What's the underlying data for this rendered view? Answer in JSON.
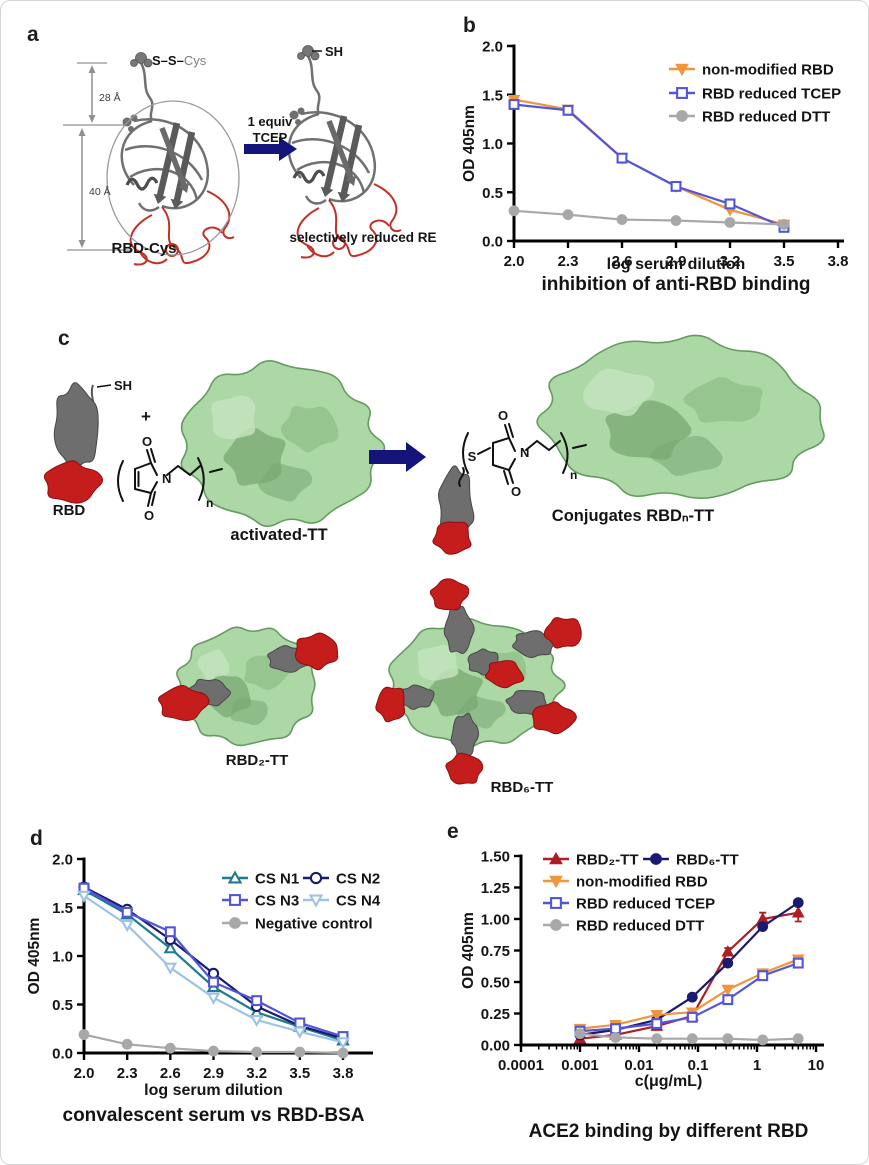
{
  "panels": {
    "a": {
      "label": "a",
      "ss_bond": "S–S–",
      "cys": "Cys",
      "sh": "SH",
      "dim_top": "28 Å",
      "dim_bottom": "40 Å",
      "equiv1": "1 equiv",
      "equiv2": "TCEP",
      "caption_left": "RBD-Cys",
      "caption_right": "selectively reduced RE"
    },
    "b": {
      "label": "b"
    },
    "c": {
      "label": "c",
      "sh": "SH",
      "plus": "+",
      "rbd_caption": "RBD",
      "o_atom": "O",
      "n_atom": "N",
      "s_atom": "S",
      "sub_n": "n",
      "caption_activated": "activated-TT",
      "caption_conjugates": "Conjugates RBDₙ-TT",
      "caption_rbd2": "RBD₂-TT",
      "caption_rbd6": "RBD₆-TT"
    },
    "d": {
      "label": "d"
    },
    "e": {
      "label": "e"
    }
  },
  "colors": {
    "orange": "#F0953C",
    "blue_violet": "#5355D8",
    "gray": "#A8A8A8",
    "teal": "#1E7A8C",
    "navy": "#1A1A70",
    "light_blue": "#9DC2E6",
    "dark_red": "#AC1F24",
    "arrow_navy": "#14147A",
    "tt_green": "#ABD8A4",
    "rbd_gray": "#6E6E6E",
    "rbd_red": "#C41D1B"
  },
  "chart_data": [
    {
      "id": "b",
      "type": "line",
      "title": "inhibition of anti-RBD binding",
      "xlabel": "log serum dilution",
      "ylabel": "OD 405nm",
      "xscale": "linear",
      "xlim": [
        2.0,
        3.8
      ],
      "ylim": [
        0.0,
        2.0
      ],
      "xticks": {
        "values": [
          2.0,
          2.3,
          2.6,
          2.9,
          3.2,
          3.5,
          3.8
        ],
        "labels": [
          "2.0",
          "2.3",
          "2.6",
          "2.9",
          "3.2",
          "3.5",
          "3.8"
        ]
      },
      "yticks": {
        "values": [
          0.0,
          0.5,
          1.0,
          1.5,
          2.0
        ],
        "labels": [
          "0.0",
          "0.5",
          "1.0",
          "1.5",
          "2.0"
        ]
      },
      "x": [
        2.0,
        2.3,
        2.6,
        2.9,
        3.2,
        3.5
      ],
      "legend_position": "top-right",
      "series": [
        {
          "name": "non-modified RBD",
          "color": "#F0953C",
          "marker": "triangle-down",
          "filled": true,
          "values": [
            1.45,
            1.35,
            0.85,
            0.56,
            0.32,
            0.17
          ]
        },
        {
          "name": "RBD reduced TCEP",
          "color": "#5355D8",
          "marker": "square",
          "filled": false,
          "values": [
            1.4,
            1.34,
            0.85,
            0.56,
            0.38,
            0.14
          ]
        },
        {
          "name": "RBD reduced DTT",
          "color": "#A8A8A8",
          "marker": "circle",
          "filled": true,
          "values": [
            0.31,
            0.27,
            0.22,
            0.21,
            0.19,
            0.17
          ]
        }
      ]
    },
    {
      "id": "d",
      "type": "line",
      "title": "convalescent serum vs RBD-BSA",
      "xlabel": "log serum dilution",
      "ylabel": "OD 405nm",
      "xscale": "linear",
      "xlim": [
        2.0,
        3.8
      ],
      "ylim": [
        0.0,
        2.0
      ],
      "xticks": {
        "values": [
          2.0,
          2.3,
          2.6,
          2.9,
          3.2,
          3.5,
          3.8
        ],
        "labels": [
          "2.0",
          "2.3",
          "2.6",
          "2.9",
          "3.2",
          "3.5",
          "3.8"
        ]
      },
      "yticks": {
        "values": [
          0.0,
          0.5,
          1.0,
          1.5,
          2.0
        ],
        "labels": [
          "0.0",
          "0.5",
          "1.0",
          "1.5",
          "2.0"
        ]
      },
      "x": [
        2.0,
        2.3,
        2.6,
        2.9,
        3.2,
        3.5,
        3.8
      ],
      "legend_position": "top-right",
      "series": [
        {
          "name": "CS N1",
          "color": "#1E7A8C",
          "marker": "triangle-up",
          "filled": false,
          "values": [
            1.68,
            1.43,
            1.08,
            0.68,
            0.42,
            0.27,
            0.13
          ]
        },
        {
          "name": "CS N2",
          "color": "#1A1A70",
          "marker": "circle",
          "filled": false,
          "values": [
            1.71,
            1.48,
            1.17,
            0.82,
            0.48,
            0.28,
            0.15
          ]
        },
        {
          "name": "CS N3",
          "color": "#5355D8",
          "marker": "square",
          "filled": false,
          "values": [
            1.7,
            1.45,
            1.25,
            0.73,
            0.54,
            0.31,
            0.17
          ]
        },
        {
          "name": "CS N4",
          "color": "#9DC2E6",
          "marker": "triangle-down",
          "filled": false,
          "values": [
            1.62,
            1.32,
            0.88,
            0.57,
            0.34,
            0.22,
            0.11
          ]
        },
        {
          "name": "Negative control",
          "color": "#A8A8A8",
          "marker": "circle",
          "filled": true,
          "values": [
            0.19,
            0.09,
            0.05,
            0.02,
            0.01,
            0.01,
            0.0
          ]
        }
      ]
    },
    {
      "id": "e",
      "type": "line",
      "title": "ACE2 binding by different RBD",
      "xlabel": "c(μg/mL)",
      "ylabel": "OD 405nm",
      "xscale": "log",
      "xlim": [
        0.0001,
        10
      ],
      "ylim": [
        0.0,
        1.5
      ],
      "xticks": {
        "values": [
          0.0001,
          0.001,
          0.01,
          0.1,
          1,
          10
        ],
        "labels": [
          "0.0001",
          "0.001",
          "0.01",
          "0.1",
          "1",
          "10"
        ]
      },
      "yticks": {
        "values": [
          0.0,
          0.25,
          0.5,
          0.75,
          1.0,
          1.25,
          1.5
        ],
        "labels": [
          "0.00",
          "0.25",
          "0.50",
          "0.75",
          "1.00",
          "1.25",
          "1.50"
        ]
      },
      "x": [
        0.001,
        0.004,
        0.02,
        0.08,
        0.32,
        1.25,
        5
      ],
      "legend_position": "top-left",
      "series": [
        {
          "name": "RBD₂-TT",
          "color": "#AC1F24",
          "marker": "triangle-up",
          "filled": true,
          "values": [
            0.05,
            0.08,
            0.15,
            0.23,
            0.74,
            1.0,
            1.05
          ],
          "errors": [
            0,
            0,
            0,
            0,
            0.03,
            0.05,
            0.07
          ]
        },
        {
          "name": "RBD₆-TT",
          "color": "#1A1A70",
          "marker": "circle",
          "filled": true,
          "values": [
            0.08,
            0.12,
            0.2,
            0.38,
            0.65,
            0.94,
            1.13
          ]
        },
        {
          "name": "non-modified RBD",
          "color": "#F0953C",
          "marker": "triangle-down",
          "filled": true,
          "values": [
            0.13,
            0.16,
            0.24,
            0.26,
            0.44,
            0.57,
            0.68
          ]
        },
        {
          "name": "RBD reduced TCEP",
          "color": "#5355D8",
          "marker": "square",
          "filled": false,
          "values": [
            0.11,
            0.13,
            0.17,
            0.22,
            0.36,
            0.55,
            0.65
          ]
        },
        {
          "name": "RBD reduced DTT",
          "color": "#A8A8A8",
          "marker": "circle",
          "filled": true,
          "values": [
            0.09,
            0.06,
            0.05,
            0.05,
            0.05,
            0.04,
            0.05
          ]
        }
      ]
    }
  ]
}
